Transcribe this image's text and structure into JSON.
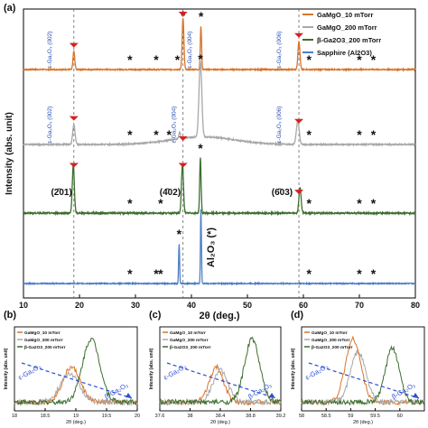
{
  "chart_data": [
    {
      "type": "line",
      "panel_label": "(a)",
      "xlabel": "2θ (deg.)",
      "ylabel": "Intensity (abs. unit)",
      "xlim": [
        10,
        80
      ],
      "x_ticks": [
        10,
        20,
        30,
        40,
        50,
        60,
        70,
        80
      ],
      "dashed_reference_lines_x": [
        19.0,
        38.5,
        59.2
      ],
      "legend_position": "top-right",
      "series": [
        {
          "name": "GaMgO_10 mTorr",
          "color": "#d9742a",
          "offset_level": 3,
          "peaks": [
            {
              "x": 19.0,
              "height": 0.34,
              "width": 0.22
            },
            {
              "x": 38.5,
              "height": 0.95,
              "width": 0.22
            },
            {
              "x": 41.7,
              "height": 0.8,
              "width": 0.16
            },
            {
              "x": 59.2,
              "height": 0.52,
              "width": 0.25
            }
          ],
          "star_positions_x": [
            29.0,
            33.7,
            37.5,
            38.5,
            41.7,
            61.0,
            70.0,
            72.5
          ],
          "peak_labels": [
            {
              "text": "ε-Ga₂O₃ (002)",
              "x": 15.0
            },
            {
              "text": "ε-Ga₂O₃ (004)",
              "x": 40.0
            },
            {
              "text": "ε-Ga₂O₃ (006)",
              "x": 56.0
            }
          ],
          "marker_x": [
            19.0,
            38.5,
            59.2
          ]
        },
        {
          "name": "GaMgO_200 mTorr",
          "color": "#a8a8a8",
          "offset_level": 2,
          "peaks": [
            {
              "x": 19.0,
              "height": 0.32,
              "width": 0.3
            },
            {
              "x": 37.9,
              "height": 0.1,
              "width": 0.2
            },
            {
              "x": 41.6,
              "height": 1.2,
              "width": 0.35
            },
            {
              "x": 59.0,
              "height": 0.38,
              "width": 0.35
            }
          ],
          "star_positions_x": [
            29.0,
            33.7,
            36.0,
            41.6,
            61.0,
            70.0,
            72.5
          ],
          "peak_labels": [
            {
              "text": "ε-Ga₂O₃ (002)",
              "x": 15.0
            },
            {
              "text": "ε-Ga₂O₃ (004)",
              "x": 37.2
            },
            {
              "text": "ε-Ga₂O₃ (006)",
              "x": 56.0
            }
          ],
          "marker_x": [
            19.0,
            38.5,
            59.2
          ]
        },
        {
          "name": "β-Ga2O3_200 mTorr",
          "color": "#3c6e2f",
          "offset_level": 1,
          "peaks": [
            {
              "x": 18.9,
              "height": 0.7,
              "width": 0.25
            },
            {
              "x": 38.4,
              "height": 0.7,
              "width": 0.25
            },
            {
              "x": 41.6,
              "height": 0.78,
              "width": 0.18
            },
            {
              "x": 59.4,
              "height": 0.36,
              "width": 0.28
            }
          ],
          "star_positions_x": [
            29.0,
            34.5,
            41.6,
            61.0,
            70.0,
            72.5
          ],
          "peak_labels": [
            {
              "text": "(2̄01)",
              "x": 16.8
            },
            {
              "text": "(4̄02)",
              "x": 36.2
            },
            {
              "text": "(6̄03)",
              "x": 56.2
            }
          ],
          "marker_x": [
            19.0,
            38.5,
            59.2
          ]
        },
        {
          "name": "Sapphire (Al2O3)",
          "color": "#4d7fc4",
          "offset_level": 0,
          "peaks": [
            {
              "x": 37.8,
              "height": 0.8,
              "width": 0.12
            },
            {
              "x": 41.7,
              "height": 1.5,
              "width": 0.12
            }
          ],
          "star_positions_x": [
            29.0,
            33.7,
            34.5,
            37.8,
            61.0,
            70.0,
            72.5
          ],
          "peak_labels": [
            {
              "text": "Al₂O₃ (*)",
              "x": 44.0
            }
          ],
          "marker_x": []
        }
      ]
    },
    {
      "type": "line",
      "panel_label": "(b)",
      "xlabel": "2θ (deg.)",
      "ylabel": "Intensity (abs. unit)",
      "xlim": [
        18.0,
        20.0
      ],
      "x_ticks": [
        "18",
        "18.5",
        "19",
        "19.5",
        "20"
      ],
      "legend": [
        "GaMgO_10 mTorr",
        "GaMgO_200 mTorr",
        "β-Ga2O3_200 mTorr"
      ],
      "series": [
        {
          "name": "GaMgO_10 mTorr",
          "color": "#d9742a",
          "center": 18.93,
          "height": 0.55,
          "width": 0.2
        },
        {
          "name": "GaMgO_200 mTorr",
          "color": "#a8a8a8",
          "center": 18.9,
          "height": 0.45,
          "width": 0.22
        },
        {
          "name": "β-Ga2O3_200 mTorr",
          "color": "#3c6e2f",
          "center": 19.25,
          "height": 1.0,
          "width": 0.2
        }
      ],
      "annotations": [
        "ε-Ga₂O₃",
        "β-Ga₂O₃"
      ]
    },
    {
      "type": "line",
      "panel_label": "(c)",
      "xlabel": "2θ (deg.)",
      "ylabel": "Intensity (abs. unit)",
      "xlim": [
        37.6,
        39.2
      ],
      "x_ticks": [
        "37.6",
        "38",
        "38.4",
        "38.8",
        "39.2"
      ],
      "legend": [
        "GaMgO_10 mTorr",
        "GaMgO_200 mTorr",
        "β-Ga2O3_200 mTorr"
      ],
      "series": [
        {
          "name": "GaMgO_10 mTorr",
          "color": "#d9742a",
          "center": 38.35,
          "height": 0.55,
          "width": 0.13
        },
        {
          "name": "GaMgO_200 mTorr",
          "color": "#a8a8a8",
          "center": 38.4,
          "height": 0.5,
          "width": 0.14
        },
        {
          "name": "β-Ga2O3_200 mTorr",
          "color": "#3c6e2f",
          "center": 38.82,
          "height": 1.0,
          "width": 0.14
        }
      ],
      "annotations": [
        "ε-Ga₂O₃",
        "β-Ga₂O₃"
      ]
    },
    {
      "type": "line",
      "panel_label": "(d)",
      "xlabel": "2θ (deg.)",
      "ylabel": "Intensity (abs. unit)",
      "xlim": [
        58.0,
        60.5
      ],
      "x_ticks": [
        "58",
        "58.5",
        "59",
        "59.5",
        "60"
      ],
      "legend": [
        "GaMgO_10 mTorr",
        "GaMgO_200 mTorr",
        "β-Ga2O3_200 mTorr"
      ],
      "series": [
        {
          "name": "GaMgO_10 mTorr",
          "color": "#d9742a",
          "center": 59.05,
          "height": 1.0,
          "width": 0.22
        },
        {
          "name": "GaMgO_200 mTorr",
          "color": "#a8a8a8",
          "center": 59.15,
          "height": 0.8,
          "width": 0.22
        },
        {
          "name": "β-Ga2O3_200 mTorr",
          "color": "#3c6e2f",
          "center": 59.85,
          "height": 0.85,
          "width": 0.2
        }
      ],
      "annotations": [
        "ε-Ga₂O₃",
        "β-Ga₂O₃"
      ]
    }
  ]
}
